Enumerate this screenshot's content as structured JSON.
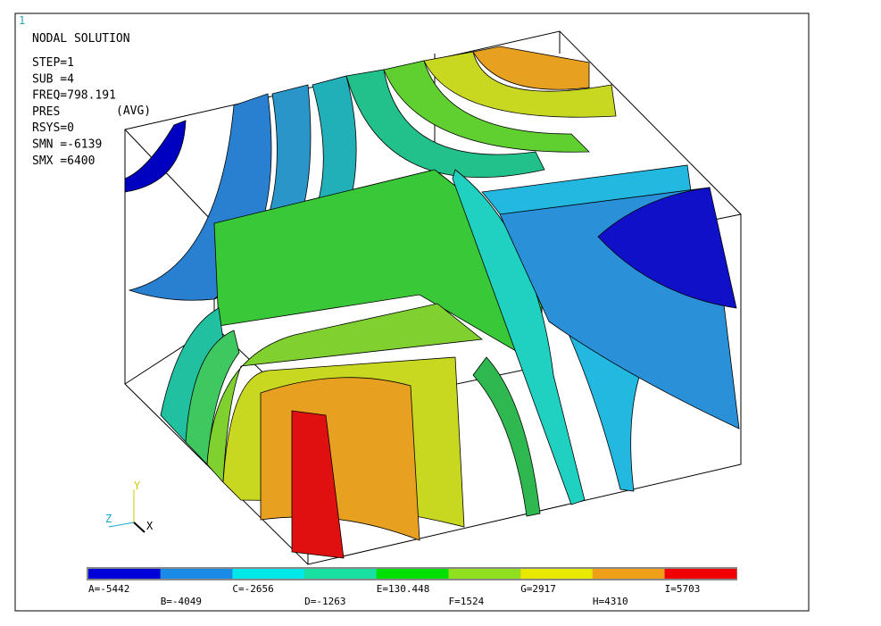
{
  "viewport_number": "1",
  "title": "NODAL SOLUTION",
  "info": [
    "STEP=1",
    "SUB =4",
    "FREQ=798.191",
    "PRES",
    "RSYS=0",
    "SMN =-6139",
    "SMX =6400"
  ],
  "avg": "(AVG)",
  "legend": [
    "A=-5442",
    "B=-4049",
    "C=-2656",
    "D=-1263",
    "E=130.448",
    "F=1524",
    "G=2917",
    "H=4310",
    "I=5703"
  ],
  "triad": {
    "y": "Y",
    "z": "Z",
    "x": "X"
  }
}
